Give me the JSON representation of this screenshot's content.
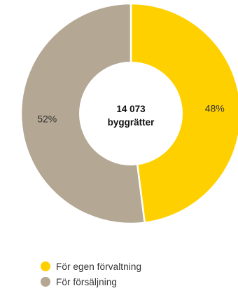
{
  "chart_data": {
    "type": "pie",
    "center_label": {
      "value": "14 073",
      "label": "byggrätter"
    },
    "series": [
      {
        "name": "För egen förvaltning",
        "value": 48,
        "label": "48%",
        "color": "#FFD000"
      },
      {
        "name": "För försäljning",
        "value": 52,
        "label": "52%",
        "color": "#B4A793"
      }
    ],
    "legend_position": "bottom-left"
  }
}
